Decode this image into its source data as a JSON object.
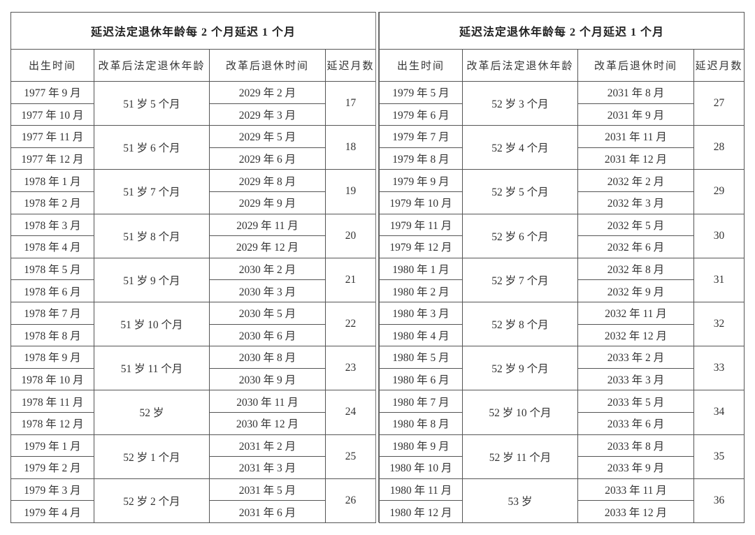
{
  "tables": [
    {
      "title": "延迟法定退休年龄每 2 个月延迟 1 个月",
      "headers": [
        "出生时间",
        "改革后法定退休年龄",
        "改革后退休时间",
        "延迟月数"
      ],
      "groups": [
        {
          "birth": [
            "1977 年 9 月",
            "1977 年 10 月"
          ],
          "age": "51 岁 5 个月",
          "retire": [
            "2029 年 2 月",
            "2029 年 3 月"
          ],
          "delay": "17"
        },
        {
          "birth": [
            "1977 年 11 月",
            "1977 年 12 月"
          ],
          "age": "51 岁 6 个月",
          "retire": [
            "2029 年 5 月",
            "2029 年 6 月"
          ],
          "delay": "18"
        },
        {
          "birth": [
            "1978 年 1 月",
            "1978 年 2 月"
          ],
          "age": "51 岁 7 个月",
          "retire": [
            "2029 年 8 月",
            "2029 年 9 月"
          ],
          "delay": "19"
        },
        {
          "birth": [
            "1978 年 3 月",
            "1978 年 4 月"
          ],
          "age": "51 岁 8 个月",
          "retire": [
            "2029 年 11 月",
            "2029 年 12 月"
          ],
          "delay": "20"
        },
        {
          "birth": [
            "1978 年 5 月",
            "1978 年 6 月"
          ],
          "age": "51 岁 9 个月",
          "retire": [
            "2030 年 2 月",
            "2030 年 3 月"
          ],
          "delay": "21"
        },
        {
          "birth": [
            "1978 年 7 月",
            "1978 年 8 月"
          ],
          "age": "51 岁 10 个月",
          "retire": [
            "2030 年 5 月",
            "2030 年 6 月"
          ],
          "delay": "22"
        },
        {
          "birth": [
            "1978 年 9 月",
            "1978 年 10 月"
          ],
          "age": "51 岁 11 个月",
          "retire": [
            "2030 年 8 月",
            "2030 年 9 月"
          ],
          "delay": "23"
        },
        {
          "birth": [
            "1978 年 11 月",
            "1978 年 12 月"
          ],
          "age": "52 岁",
          "retire": [
            "2030 年 11 月",
            "2030 年 12 月"
          ],
          "delay": "24"
        },
        {
          "birth": [
            "1979 年 1 月",
            "1979 年 2 月"
          ],
          "age": "52 岁 1 个月",
          "retire": [
            "2031 年 2 月",
            "2031 年 3 月"
          ],
          "delay": "25"
        },
        {
          "birth": [
            "1979 年 3 月",
            "1979 年 4 月"
          ],
          "age": "52 岁 2 个月",
          "retire": [
            "2031 年 5 月",
            "2031 年 6 月"
          ],
          "delay": "26"
        }
      ]
    },
    {
      "title": "延迟法定退休年龄每 2 个月延迟 1 个月",
      "headers": [
        "出生时间",
        "改革后法定退休年龄",
        "改革后退休时间",
        "延迟月数"
      ],
      "groups": [
        {
          "birth": [
            "1979 年 5 月",
            "1979 年 6 月"
          ],
          "age": "52 岁 3 个月",
          "retire": [
            "2031 年 8 月",
            "2031 年 9 月"
          ],
          "delay": "27"
        },
        {
          "birth": [
            "1979 年 7 月",
            "1979 年 8 月"
          ],
          "age": "52 岁 4 个月",
          "retire": [
            "2031 年 11 月",
            "2031 年 12 月"
          ],
          "delay": "28"
        },
        {
          "birth": [
            "1979 年 9 月",
            "1979 年 10 月"
          ],
          "age": "52 岁 5 个月",
          "retire": [
            "2032 年 2 月",
            "2032 年 3 月"
          ],
          "delay": "29"
        },
        {
          "birth": [
            "1979 年 11 月",
            "1979 年 12 月"
          ],
          "age": "52 岁 6 个月",
          "retire": [
            "2032 年 5 月",
            "2032 年 6 月"
          ],
          "delay": "30"
        },
        {
          "birth": [
            "1980 年 1 月",
            "1980 年 2 月"
          ],
          "age": "52 岁 7 个月",
          "retire": [
            "2032 年 8 月",
            "2032 年 9 月"
          ],
          "delay": "31"
        },
        {
          "birth": [
            "1980 年 3 月",
            "1980 年 4 月"
          ],
          "age": "52 岁 8 个月",
          "retire": [
            "2032 年 11 月",
            "2032 年 12 月"
          ],
          "delay": "32"
        },
        {
          "birth": [
            "1980 年 5 月",
            "1980 年 6 月"
          ],
          "age": "52 岁 9 个月",
          "retire": [
            "2033 年 2 月",
            "2033 年 3 月"
          ],
          "delay": "33"
        },
        {
          "birth": [
            "1980 年 7 月",
            "1980 年 8 月"
          ],
          "age": "52 岁 10 个月",
          "retire": [
            "2033 年 5 月",
            "2033 年 6 月"
          ],
          "delay": "34"
        },
        {
          "birth": [
            "1980 年 9 月",
            "1980 年 10 月"
          ],
          "age": "52 岁 11 个月",
          "retire": [
            "2033 年 8 月",
            "2033 年 9 月"
          ],
          "delay": "35"
        },
        {
          "birth": [
            "1980 年 11 月",
            "1980 年 12 月"
          ],
          "age": "53 岁",
          "retire": [
            "2033 年 11 月",
            "2033 年 12 月"
          ],
          "delay": "36"
        }
      ]
    }
  ]
}
